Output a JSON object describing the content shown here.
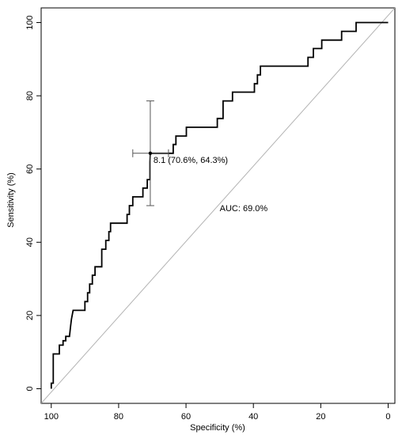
{
  "chart_data": {
    "type": "line",
    "title": "",
    "xlabel": "Specificity (%)",
    "ylabel": "Sensitivity (%)",
    "x_reversed": true,
    "xlim": [
      103,
      -2
    ],
    "ylim": [
      -4,
      104
    ],
    "x_ticks": [
      100,
      80,
      60,
      40,
      20,
      0
    ],
    "x_tick_labels": [
      "100",
      "80",
      "60",
      "40",
      "20",
      "0"
    ],
    "y_ticks": [
      0,
      20,
      40,
      60,
      80,
      100
    ],
    "y_tick_labels": [
      "0",
      "20",
      "40",
      "60",
      "80",
      "100"
    ],
    "grid": false,
    "series": [
      {
        "style": "step",
        "color": "#000000",
        "points": [
          [
            100,
            0
          ],
          [
            100,
            1.5
          ],
          [
            99.4,
            1.5
          ],
          [
            99.4,
            9.5
          ],
          [
            97.6,
            9.5
          ],
          [
            97.6,
            11.9
          ],
          [
            96.5,
            11.9
          ],
          [
            96.5,
            13.1
          ],
          [
            95.7,
            13.1
          ],
          [
            95.7,
            14.3
          ],
          [
            94.6,
            14.3
          ],
          [
            94.3,
            16.7
          ],
          [
            94.0,
            19.0
          ],
          [
            93.5,
            21.4
          ],
          [
            90,
            21.4
          ],
          [
            90,
            23.8
          ],
          [
            89.2,
            23.8
          ],
          [
            89.2,
            26.2
          ],
          [
            88.6,
            26.2
          ],
          [
            88.6,
            28.6
          ],
          [
            87.8,
            28.6
          ],
          [
            87.8,
            31.0
          ],
          [
            87.0,
            31.0
          ],
          [
            87.0,
            33.3
          ],
          [
            85,
            33.3
          ],
          [
            85,
            38.1
          ],
          [
            83.8,
            38.1
          ],
          [
            83.8,
            40.5
          ],
          [
            82.9,
            40.5
          ],
          [
            82.9,
            42.9
          ],
          [
            82.4,
            42.9
          ],
          [
            82.4,
            45.2
          ],
          [
            77.5,
            45.2
          ],
          [
            77.5,
            47.6
          ],
          [
            76.8,
            47.6
          ],
          [
            76.8,
            50.0
          ],
          [
            75.8,
            50.0
          ],
          [
            75.8,
            52.4
          ],
          [
            72.8,
            52.4
          ],
          [
            72.8,
            54.8
          ],
          [
            71.5,
            54.8
          ],
          [
            71.5,
            57.1
          ],
          [
            70.7,
            57.1
          ],
          [
            70.7,
            61.9
          ],
          [
            70.6,
            64.3
          ],
          [
            63.8,
            64.3
          ],
          [
            63.8,
            66.7
          ],
          [
            63.0,
            66.7
          ],
          [
            63.0,
            69.0
          ],
          [
            59.9,
            69.0
          ],
          [
            59.9,
            71.4
          ],
          [
            50.7,
            71.4
          ],
          [
            50.7,
            73.8
          ],
          [
            49.0,
            73.8
          ],
          [
            49.0,
            78.6
          ],
          [
            46.2,
            78.6
          ],
          [
            46.2,
            81.0
          ],
          [
            39.7,
            81.0
          ],
          [
            39.7,
            83.3
          ],
          [
            38.8,
            83.3
          ],
          [
            38.8,
            85.7
          ],
          [
            37.9,
            85.7
          ],
          [
            37.9,
            88.1
          ],
          [
            23.8,
            88.1
          ],
          [
            23.8,
            90.5
          ],
          [
            22.2,
            90.5
          ],
          [
            22.2,
            92.9
          ],
          [
            19.7,
            92.9
          ],
          [
            19.7,
            95.2
          ],
          [
            13.8,
            95.2
          ],
          [
            13.8,
            97.6
          ],
          [
            9.5,
            97.6
          ],
          [
            9.5,
            100
          ],
          [
            0,
            100
          ]
        ]
      }
    ],
    "reference_line": {
      "from": [
        103,
        -4
      ],
      "to": [
        -2,
        104
      ],
      "color": "#b3b3b3"
    },
    "threshold_point": {
      "label": "8.1 (70.6%, 64.3%)",
      "x": 70.6,
      "y": 64.3,
      "x_ci": [
        75.8,
        65.2
      ],
      "y_ci": [
        50.0,
        78.6
      ]
    },
    "auc_label": "AUC: 69.0%"
  }
}
